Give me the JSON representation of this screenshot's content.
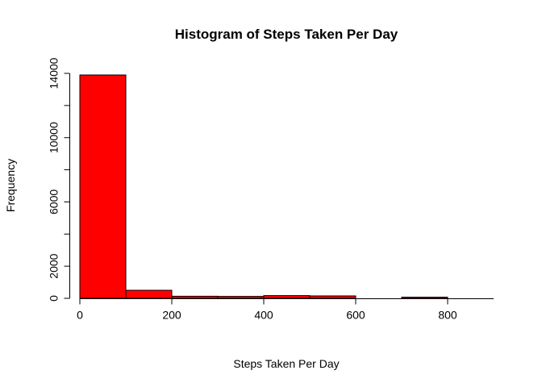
{
  "chart_data": {
    "type": "bar",
    "title": "Histogram of Steps Taken Per Day",
    "xlabel": "Steps Taken Per Day",
    "ylabel": "Frequency",
    "bin_edges": [
      0,
      100,
      200,
      300,
      400,
      500,
      600,
      700,
      800,
      900
    ],
    "values": [
      13900,
      500,
      130,
      120,
      170,
      150,
      0,
      70,
      0
    ],
    "xlim": [
      0,
      900
    ],
    "ylim": [
      0,
      14000
    ],
    "xticks": [
      0,
      200,
      400,
      600,
      800
    ],
    "yticks": [
      0,
      2000,
      6000,
      10000,
      14000
    ],
    "yticks_minor": [
      4000,
      8000,
      12000
    ],
    "bar_color": "#ff0000",
    "edge_color": "#000000",
    "grid": false
  }
}
